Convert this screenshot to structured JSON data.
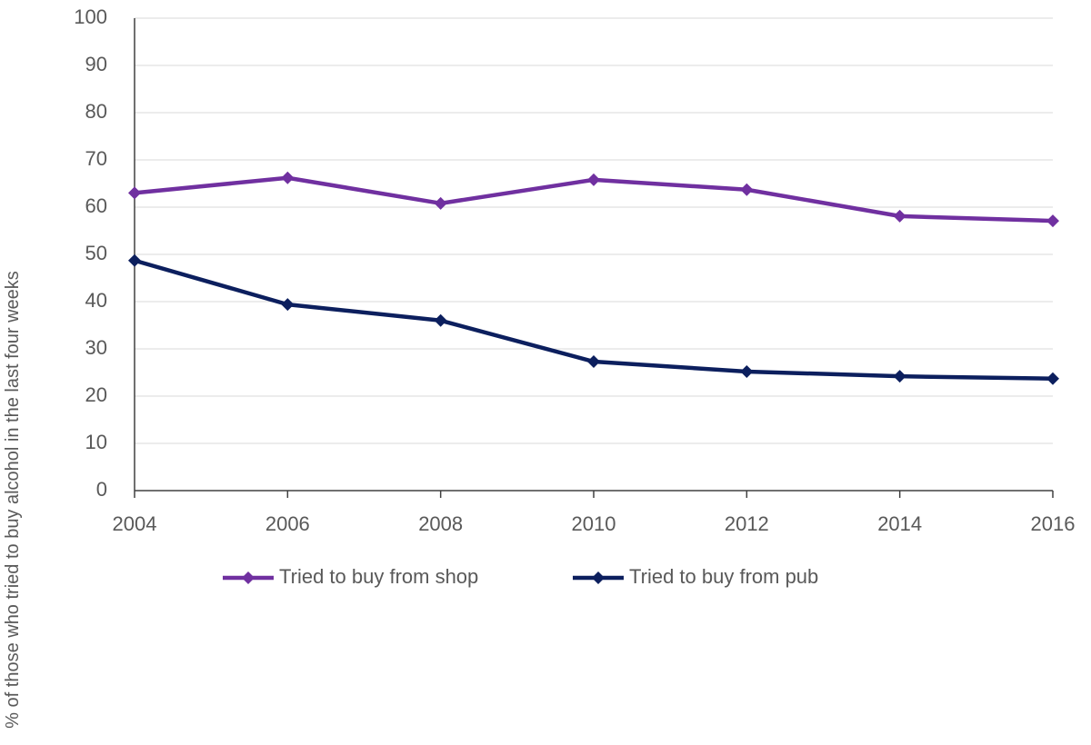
{
  "chart_data": {
    "type": "line",
    "y_label": "% of those who tried to buy alcohol in the last four weeks",
    "x": [
      2004,
      2006,
      2008,
      2010,
      2012,
      2014,
      2016
    ],
    "xlim": [
      2004,
      2016
    ],
    "xticks": [
      2004,
      2006,
      2008,
      2010,
      2012,
      2014,
      2016
    ],
    "ylim": [
      0,
      100
    ],
    "yticks": [
      0,
      10,
      20,
      30,
      40,
      50,
      60,
      70,
      80,
      90,
      100
    ],
    "grid": true,
    "legend": "bottom",
    "series": [
      {
        "name": "Tried to buy from shop",
        "color": "#7030a0",
        "values": [
          63,
          66.2,
          60.8,
          65.8,
          63.7,
          58.1,
          57.1
        ]
      },
      {
        "name": "Tried to buy from pub",
        "color": "#0c1f5e",
        "values": [
          48.7,
          39.4,
          36,
          27.3,
          25.2,
          24.2,
          23.7
        ]
      }
    ]
  }
}
